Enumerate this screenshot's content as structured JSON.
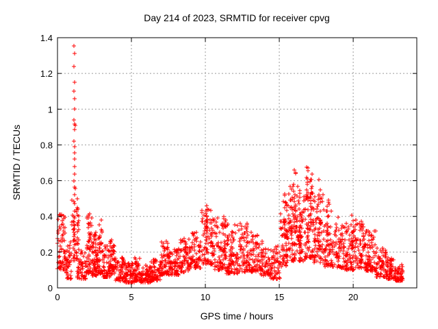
{
  "title": "Day 214 of 2023, SRMTID for receiver cpvg",
  "colors": {
    "marker": "#ff0000",
    "grid": "#9b9b9b",
    "axis": "#000000",
    "background": "#ffffff"
  },
  "chart_data": {
    "type": "scatter",
    "marker": "plus",
    "marker_color": "#ff0000",
    "title": "Day 214 of 2023, SRMTID for receiver cpvg",
    "xlabel": "GPS time / hours",
    "ylabel": "SRMTID / TECUs",
    "xlim": [
      0,
      24.3
    ],
    "ylim": [
      0,
      1.4
    ],
    "xticks": [
      0,
      5,
      10,
      15,
      20
    ],
    "yticks": [
      0,
      0.2,
      0.4,
      0.6,
      0.8,
      1,
      1.2,
      1.4
    ],
    "grid": true,
    "legend": "none",
    "spike_points": [
      [
        1.13,
        1.355
      ],
      [
        1.14,
        1.31
      ],
      [
        1.13,
        1.24
      ],
      [
        1.14,
        1.15
      ],
      [
        1.13,
        1.1
      ],
      [
        1.15,
        1.058
      ],
      [
        1.14,
        1.0
      ],
      [
        1.13,
        0.94
      ],
      [
        1.15,
        0.915
      ],
      [
        1.19,
        0.91
      ],
      [
        1.14,
        0.885
      ],
      [
        1.13,
        0.82
      ],
      [
        1.15,
        0.79
      ],
      [
        1.16,
        0.755
      ],
      [
        1.14,
        0.72
      ],
      [
        1.15,
        0.68
      ],
      [
        1.14,
        0.635
      ],
      [
        1.13,
        0.6
      ],
      [
        1.15,
        0.565
      ],
      [
        1.19,
        0.558
      ],
      [
        1.14,
        0.52
      ],
      [
        1.13,
        0.485
      ],
      [
        1.16,
        0.47
      ],
      [
        1.14,
        0.43
      ],
      [
        1.13,
        0.4
      ],
      [
        1.15,
        0.35
      ],
      [
        1.14,
        0.33
      ],
      [
        1.17,
        0.3
      ],
      [
        1.14,
        0.27
      ],
      [
        1.15,
        0.24
      ],
      [
        1.16,
        0.21
      ],
      [
        1.14,
        0.18
      ]
    ],
    "bands": [
      [
        0.0,
        0.3,
        0.1,
        0.42,
        38
      ],
      [
        0.3,
        0.6,
        0.1,
        0.42,
        40
      ],
      [
        0.6,
        0.95,
        0.05,
        0.26,
        35
      ],
      [
        0.95,
        1.35,
        0.15,
        0.5,
        32
      ],
      [
        1.35,
        1.95,
        0.05,
        0.22,
        52
      ],
      [
        1.95,
        2.35,
        0.08,
        0.4,
        45
      ],
      [
        2.35,
        2.7,
        0.07,
        0.32,
        42
      ],
      [
        2.7,
        3.05,
        0.08,
        0.34,
        40
      ],
      [
        3.05,
        3.55,
        0.06,
        0.24,
        52
      ],
      [
        3.55,
        3.9,
        0.07,
        0.26,
        38
      ],
      [
        3.9,
        4.5,
        0.04,
        0.18,
        58
      ],
      [
        4.5,
        5.2,
        0.03,
        0.14,
        68
      ],
      [
        5.2,
        5.55,
        0.04,
        0.17,
        38
      ],
      [
        5.55,
        6.3,
        0.03,
        0.13,
        72
      ],
      [
        6.3,
        7.0,
        0.04,
        0.16,
        68
      ],
      [
        7.0,
        7.6,
        0.07,
        0.27,
        55
      ],
      [
        7.6,
        8.3,
        0.07,
        0.22,
        62
      ],
      [
        8.3,
        9.0,
        0.09,
        0.28,
        62
      ],
      [
        9.0,
        9.7,
        0.11,
        0.31,
        62
      ],
      [
        9.7,
        10.6,
        0.13,
        0.44,
        78
      ],
      [
        10.6,
        11.4,
        0.1,
        0.4,
        72
      ],
      [
        11.4,
        12.2,
        0.08,
        0.36,
        72
      ],
      [
        12.2,
        12.9,
        0.09,
        0.36,
        62
      ],
      [
        12.9,
        13.6,
        0.09,
        0.31,
        62
      ],
      [
        13.6,
        14.4,
        0.07,
        0.28,
        66
      ],
      [
        14.4,
        15.05,
        0.05,
        0.26,
        52
      ],
      [
        15.05,
        15.6,
        0.12,
        0.5,
        58
      ],
      [
        15.6,
        16.25,
        0.15,
        0.58,
        68
      ],
      [
        16.25,
        16.75,
        0.15,
        0.55,
        55
      ],
      [
        16.75,
        17.3,
        0.17,
        0.62,
        60
      ],
      [
        17.3,
        18.0,
        0.14,
        0.55,
        68
      ],
      [
        18.0,
        18.7,
        0.12,
        0.46,
        62
      ],
      [
        18.7,
        19.4,
        0.11,
        0.4,
        62
      ],
      [
        19.4,
        20.1,
        0.1,
        0.36,
        62
      ],
      [
        20.1,
        20.85,
        0.11,
        0.38,
        66
      ],
      [
        20.85,
        21.55,
        0.09,
        0.32,
        62
      ],
      [
        21.55,
        22.25,
        0.06,
        0.23,
        62
      ],
      [
        22.25,
        22.85,
        0.05,
        0.17,
        58
      ],
      [
        22.85,
        23.35,
        0.04,
        0.13,
        52
      ]
    ],
    "columns": [
      [
        1.38,
        0.18,
        0.47,
        14
      ],
      [
        2.1,
        0.15,
        0.44,
        12
      ],
      [
        2.52,
        0.12,
        0.35,
        10
      ],
      [
        2.9,
        0.12,
        0.38,
        10
      ],
      [
        3.62,
        0.1,
        0.28,
        8
      ],
      [
        7.3,
        0.1,
        0.28,
        8
      ],
      [
        8.6,
        0.12,
        0.3,
        8
      ],
      [
        10.1,
        0.2,
        0.46,
        12
      ],
      [
        10.45,
        0.18,
        0.44,
        10
      ],
      [
        11.3,
        0.15,
        0.44,
        10
      ],
      [
        11.75,
        0.06,
        0.3,
        8
      ],
      [
        12.8,
        0.12,
        0.38,
        8
      ],
      [
        15.35,
        0.2,
        0.55,
        12
      ],
      [
        15.8,
        0.25,
        0.64,
        14
      ],
      [
        16.05,
        0.22,
        0.67,
        14
      ],
      [
        16.45,
        0.2,
        0.55,
        10
      ],
      [
        16.9,
        0.25,
        0.7,
        16
      ],
      [
        17.15,
        0.22,
        0.66,
        12
      ],
      [
        17.7,
        0.2,
        0.62,
        12
      ],
      [
        18.3,
        0.15,
        0.5,
        10
      ],
      [
        19.95,
        0.15,
        0.46,
        12
      ],
      [
        20.55,
        0.12,
        0.38,
        10
      ],
      [
        21.0,
        0.1,
        0.35,
        8
      ]
    ]
  }
}
